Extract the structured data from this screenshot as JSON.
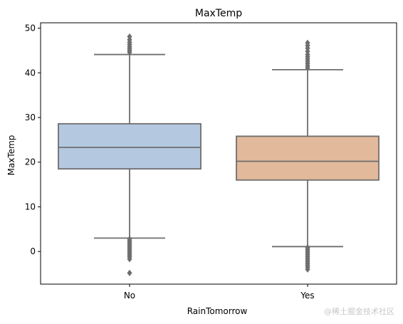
{
  "chart_data": {
    "type": "box",
    "title": "MaxTemp",
    "xlabel": "RainTomorrow",
    "ylabel": "MaxTemp",
    "ylim": [
      -7.3,
      51.2
    ],
    "yticks": [
      0,
      10,
      20,
      30,
      40,
      50
    ],
    "categories": [
      "No",
      "Yes"
    ],
    "boxes": [
      {
        "category": "No",
        "color": "#b4c9e0",
        "q1": 18.5,
        "median": 23.3,
        "q3": 28.6,
        "whisker_low": 3.0,
        "whisker_high": 44.1,
        "outliers": [
          2.8,
          2.4,
          2.0,
          1.6,
          1.2,
          0.8,
          0.4,
          0.0,
          -0.4,
          -0.8,
          -1.2,
          -1.7,
          -4.8,
          44.6,
          45.0,
          45.4,
          45.8,
          46.3,
          46.8,
          47.4,
          48.1
        ]
      },
      {
        "category": "Yes",
        "color": "#e3b99b",
        "q1": 16.0,
        "median": 20.2,
        "q3": 25.8,
        "whisker_low": 1.1,
        "whisker_high": 40.7,
        "outliers": [
          0.9,
          0.5,
          0.1,
          -0.3,
          -0.7,
          -1.1,
          -1.5,
          -1.9,
          -2.3,
          -2.7,
          -3.1,
          -3.5,
          -4.0,
          41.1,
          41.6,
          42.1,
          42.6,
          43.1,
          43.6,
          44.1,
          44.8,
          45.5,
          46.1,
          46.7
        ]
      }
    ],
    "edge_color": "#6e6e6e",
    "grid": false
  },
  "watermark": "@稀土掘金技术社区"
}
